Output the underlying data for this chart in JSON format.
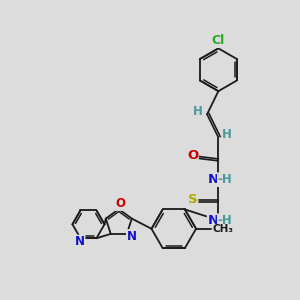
{
  "bg": "#dcdcdc",
  "bc": "#1a1a1a",
  "atom_colors": {
    "Cl": "#22aa22",
    "O": "#cc0000",
    "N": "#1111cc",
    "S": "#aaaa00",
    "H": "#4a9999",
    "C": "#1a1a1a"
  },
  "figsize": [
    3.0,
    3.0
  ],
  "dpi": 100,
  "xlim": [
    0,
    10
  ],
  "ylim": [
    0,
    10
  ]
}
